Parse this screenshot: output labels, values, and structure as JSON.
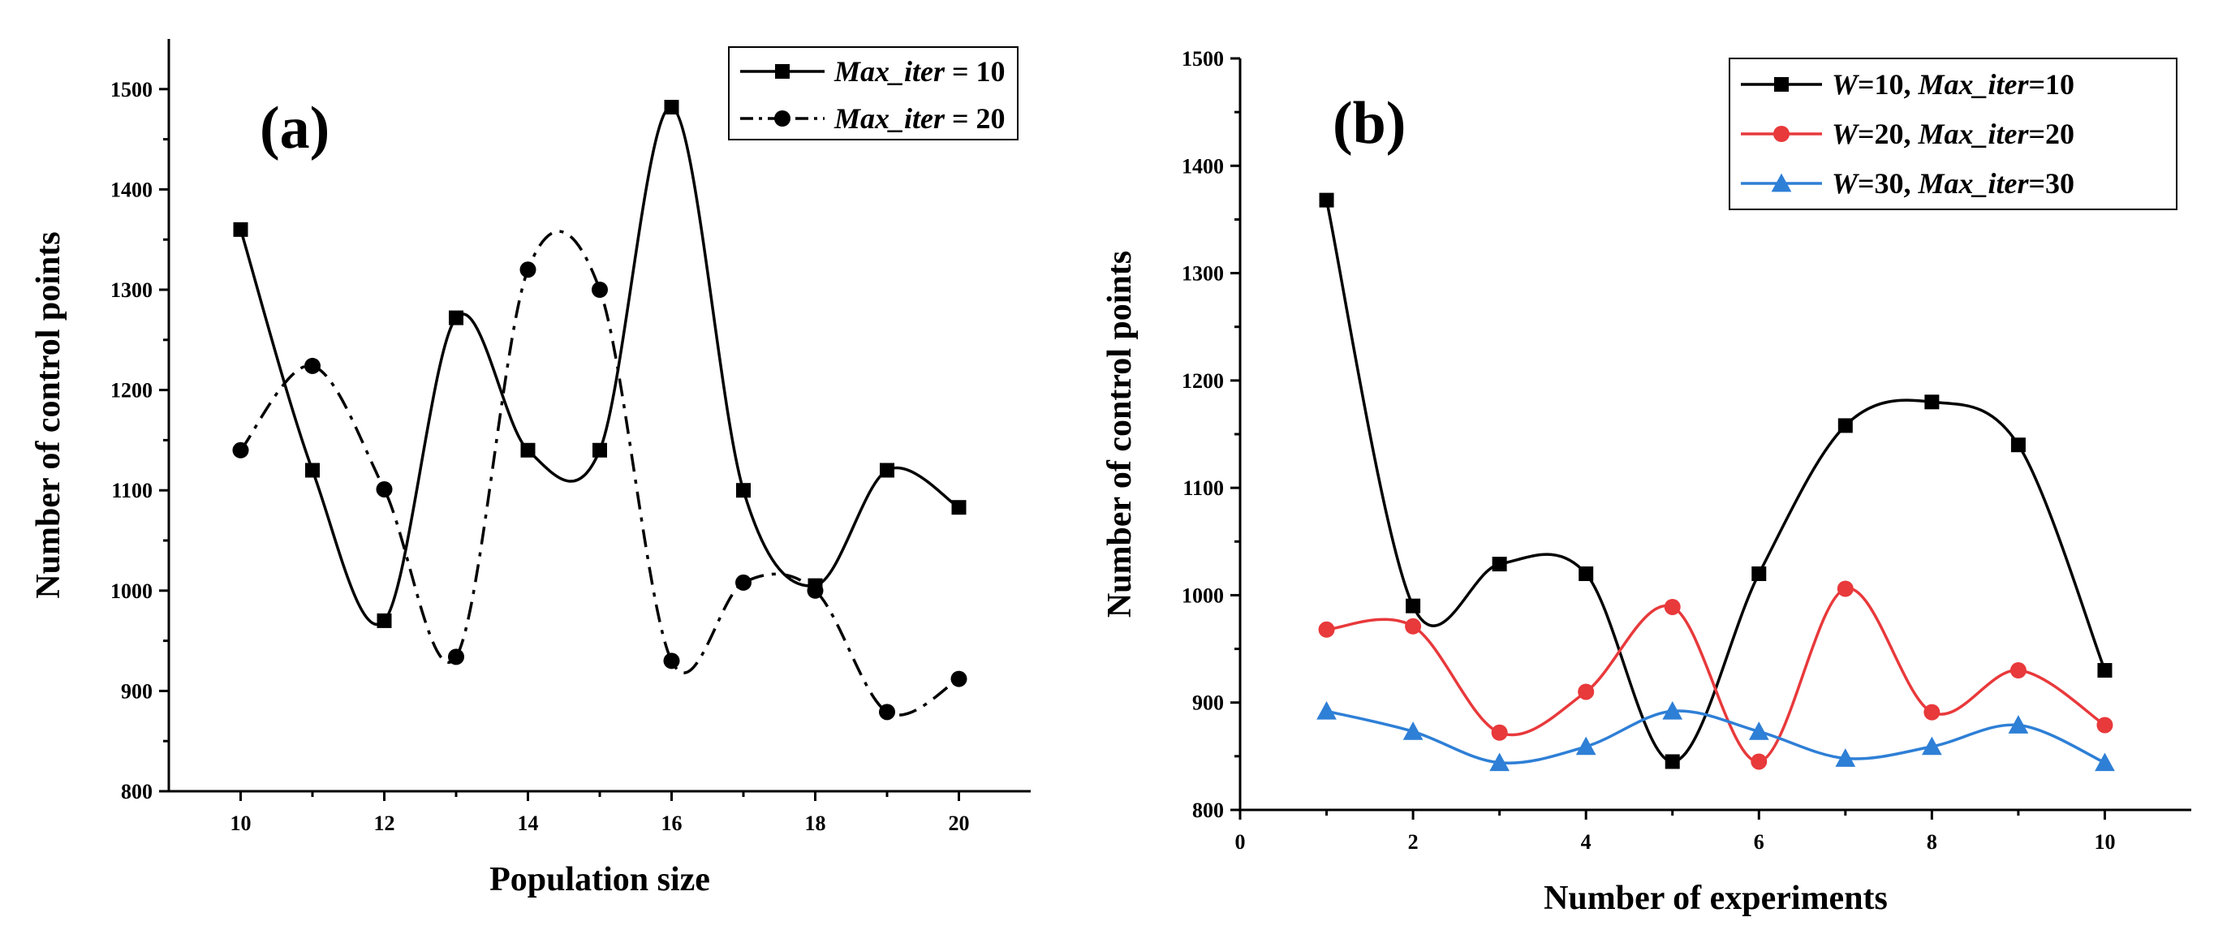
{
  "chart_data": [
    {
      "type": "line",
      "panel_label": "(a)",
      "xlabel": "Population size",
      "ylabel": "Number of control points",
      "xlim": [
        9,
        21
      ],
      "ylim": [
        800,
        1550
      ],
      "xticks": [
        10,
        12,
        14,
        16,
        18,
        20
      ],
      "yticks": [
        800,
        900,
        1000,
        1100,
        1200,
        1300,
        1400,
        1500
      ],
      "x": [
        10,
        11,
        12,
        13,
        14,
        15,
        16,
        17,
        18,
        19,
        20
      ],
      "legend_position": "top-right",
      "series": [
        {
          "name": "Max_iter = 10",
          "legend_parts": [
            {
              "t": "Max_iter",
              "i": true
            },
            {
              "t": " = 10",
              "i": false
            }
          ],
          "color": "#000000",
          "marker": "square",
          "dash": "solid",
          "values": [
            1360,
            1120,
            970,
            1272,
            1140,
            1140,
            1482,
            1100,
            1005,
            1120,
            1083
          ]
        },
        {
          "name": "Max_iter = 20",
          "legend_parts": [
            {
              "t": "Max_iter",
              "i": true
            },
            {
              "t": " = 20",
              "i": false
            }
          ],
          "color": "#000000",
          "marker": "circle",
          "dash": "dashdot",
          "values": [
            1140,
            1224,
            1101,
            934,
            1320,
            1300,
            930,
            1008,
            1000,
            879,
            912
          ]
        }
      ]
    },
    {
      "type": "line",
      "panel_label": "(b)",
      "xlabel": "Number of experiments",
      "ylabel": "Number of control points",
      "xlim": [
        0,
        11
      ],
      "ylim": [
        800,
        1500
      ],
      "xticks": [
        0,
        2,
        4,
        6,
        8,
        10
      ],
      "yticks": [
        800,
        900,
        1000,
        1100,
        1200,
        1300,
        1400,
        1500
      ],
      "x": [
        1,
        2,
        3,
        4,
        5,
        6,
        7,
        8,
        9,
        10
      ],
      "legend_position": "top-right",
      "series": [
        {
          "name": "W=10, Max_iter=10",
          "legend_parts": [
            {
              "t": "W",
              "i": true
            },
            {
              "t": "=10, ",
              "i": false
            },
            {
              "t": "Max_iter",
              "i": true
            },
            {
              "t": "=10",
              "i": false
            }
          ],
          "color": "#000000",
          "marker": "square",
          "dash": "solid",
          "values": [
            1368,
            990,
            1029,
            1020,
            845,
            1020,
            1158,
            1180,
            1140,
            930
          ]
        },
        {
          "name": "W=20, Max_iter=20",
          "legend_parts": [
            {
              "t": "W",
              "i": true
            },
            {
              "t": "=20, ",
              "i": false
            },
            {
              "t": "Max_iter",
              "i": true
            },
            {
              "t": "=20",
              "i": false
            }
          ],
          "color": "#e8393b",
          "marker": "circle",
          "dash": "solid",
          "values": [
            968,
            971,
            872,
            910,
            989,
            845,
            1006,
            891,
            930,
            879
          ]
        },
        {
          "name": "W=30, Max_iter=30",
          "legend_parts": [
            {
              "t": "W",
              "i": true
            },
            {
              "t": "=30, ",
              "i": false
            },
            {
              "t": "Max_iter",
              "i": true
            },
            {
              "t": "=30",
              "i": false
            }
          ],
          "color": "#2e7fd6",
          "marker": "triangle",
          "dash": "solid",
          "values": [
            892,
            873,
            844,
            859,
            892,
            873,
            848,
            859,
            879,
            844
          ]
        }
      ]
    }
  ]
}
